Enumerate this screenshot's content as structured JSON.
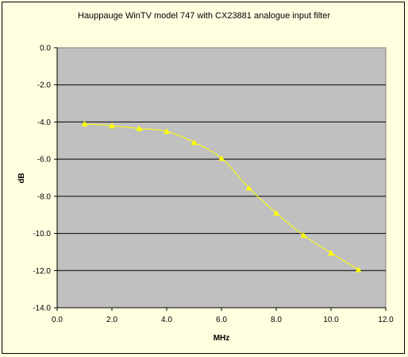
{
  "chart_data": {
    "type": "line",
    "title": "Hauppauge WinTV model 747 with CX23881 analogue input filter",
    "xlabel": "MHz",
    "ylabel": "dB",
    "xlim": [
      0,
      12
    ],
    "ylim": [
      -14,
      0
    ],
    "x_ticks": [
      0,
      2,
      4,
      6,
      8,
      10,
      12
    ],
    "y_ticks": [
      0,
      -2,
      -4,
      -6,
      -8,
      -10,
      -12,
      -14
    ],
    "x_tick_labels": [
      "0.0",
      "2.0",
      "4.0",
      "6.0",
      "8.0",
      "10.0",
      "12.0"
    ],
    "y_tick_labels": [
      "0.0",
      "-2.0",
      "-4.0",
      "-6.0",
      "-8.0",
      "-10.0",
      "-12.0",
      "-14.0"
    ],
    "grid": "horizontal",
    "legend": "none",
    "series": [
      {
        "x": [
          1,
          2,
          3,
          4,
          5,
          6,
          7,
          8,
          9,
          10,
          11
        ],
        "y": [
          -4.1,
          -4.2,
          -4.35,
          -4.5,
          -5.1,
          -5.95,
          -7.55,
          -8.9,
          -10.1,
          -11.05,
          -11.95
        ],
        "color": "#ffff00",
        "marker": "triangle"
      }
    ],
    "colors": {
      "plot_background": "#c0c0c0",
      "chart_background": "#ffffe0",
      "gridline": "#000000"
    }
  }
}
